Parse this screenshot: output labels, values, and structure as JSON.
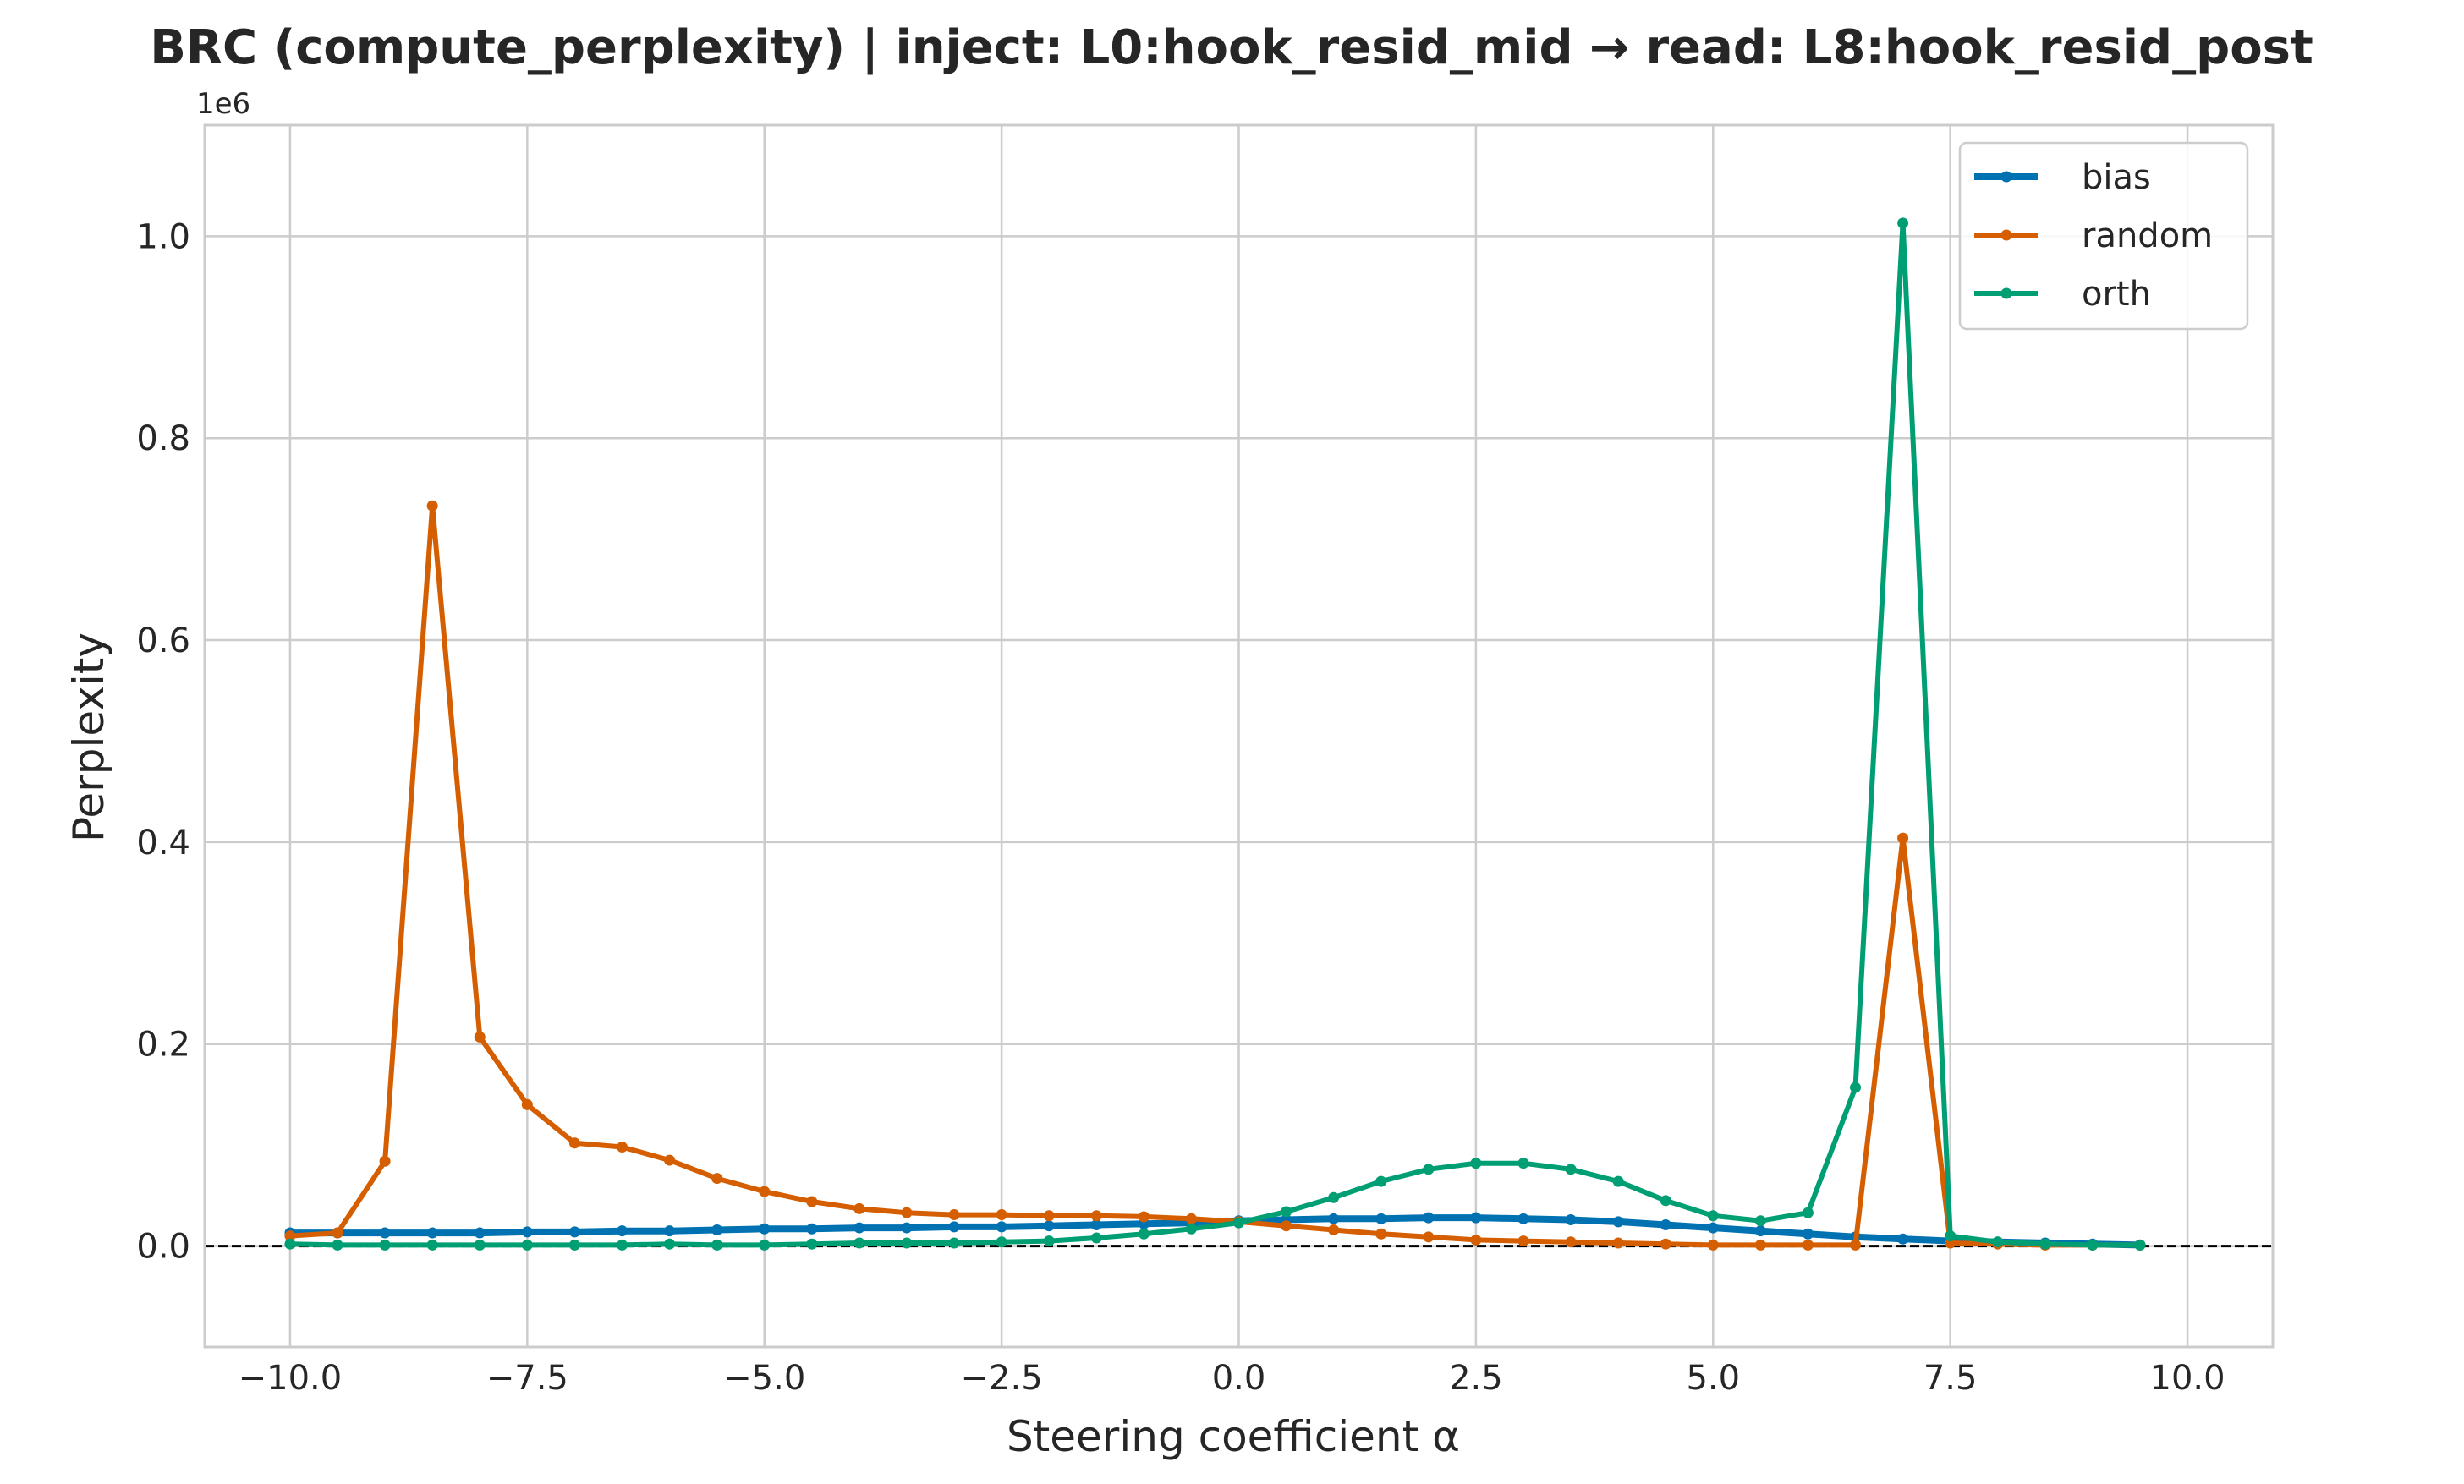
{
  "chart_data": {
    "type": "line",
    "title": "BRC (compute_perplexity) | inject: L0:hook_resid_mid → read: L8:hook_resid_post",
    "xlabel": "Steering coefficient α",
    "ylabel": "Perplexity",
    "y_offset_label": "1e6",
    "xlim": [
      -10.9,
      10.9
    ],
    "ylim": [
      -0.1,
      1.11
    ],
    "x_ticks": [
      -10.0,
      -7.5,
      -5.0,
      -2.5,
      0.0,
      2.5,
      5.0,
      7.5,
      10.0
    ],
    "x_tick_labels": [
      "−10.0",
      "−7.5",
      "−5.0",
      "−2.5",
      "0.0",
      "2.5",
      "5.0",
      "7.5",
      "10.0"
    ],
    "y_ticks": [
      0.0,
      0.2,
      0.4,
      0.6,
      0.8,
      1.0
    ],
    "y_tick_labels": [
      "0.0",
      "0.2",
      "0.4",
      "0.6",
      "0.8",
      "1.0"
    ],
    "grid": true,
    "legend_position": "top-right",
    "reference_line": {
      "y": 0,
      "style": "dashed",
      "color": "#000000"
    },
    "x": [
      -10.0,
      -9.5,
      -9.0,
      -8.5,
      -8.0,
      -7.5,
      -7.0,
      -6.5,
      -6.0,
      -5.5,
      -5.0,
      -4.5,
      -4.0,
      -3.5,
      -3.0,
      -2.5,
      -2.0,
      -1.5,
      -1.0,
      -0.5,
      0.0,
      0.5,
      1.0,
      1.5,
      2.0,
      2.5,
      3.0,
      3.5,
      4.0,
      4.5,
      5.0,
      5.5,
      6.0,
      6.5,
      7.0,
      7.5,
      8.0,
      8.5,
      9.0,
      9.5
    ],
    "series": [
      {
        "name": "bias",
        "color": "#0072b2",
        "values": [
          0.013,
          0.013,
          0.013,
          0.013,
          0.013,
          0.014,
          0.014,
          0.015,
          0.015,
          0.016,
          0.017,
          0.017,
          0.018,
          0.018,
          0.019,
          0.019,
          0.02,
          0.021,
          0.022,
          0.023,
          0.025,
          0.026,
          0.027,
          0.027,
          0.028,
          0.028,
          0.027,
          0.026,
          0.024,
          0.021,
          0.018,
          0.015,
          0.012,
          0.009,
          0.007,
          0.005,
          0.004,
          0.003,
          0.002,
          0.001
        ]
      },
      {
        "name": "random",
        "color": "#d55e00",
        "values": [
          0.01,
          0.013,
          0.084,
          0.733,
          0.207,
          0.14,
          0.102,
          0.098,
          0.085,
          0.067,
          0.054,
          0.044,
          0.037,
          0.033,
          0.031,
          0.031,
          0.03,
          0.03,
          0.029,
          0.027,
          0.024,
          0.02,
          0.016,
          0.012,
          0.009,
          0.006,
          0.005,
          0.004,
          0.003,
          0.002,
          0.001,
          0.001,
          0.001,
          0.001,
          0.404,
          0.003,
          0.002,
          0.001,
          0.001,
          0.001
        ]
      },
      {
        "name": "orth",
        "color": "#009e73",
        "values": [
          0.002,
          0.001,
          0.001,
          0.001,
          0.001,
          0.001,
          0.001,
          0.001,
          0.002,
          0.001,
          0.001,
          0.002,
          0.003,
          0.003,
          0.003,
          0.004,
          0.005,
          0.008,
          0.012,
          0.017,
          0.023,
          0.034,
          0.048,
          0.064,
          0.076,
          0.082,
          0.082,
          0.076,
          0.064,
          0.045,
          0.03,
          0.025,
          0.033,
          0.157,
          1.013,
          0.01,
          0.004,
          0.002,
          0.001,
          0.001
        ]
      }
    ]
  }
}
